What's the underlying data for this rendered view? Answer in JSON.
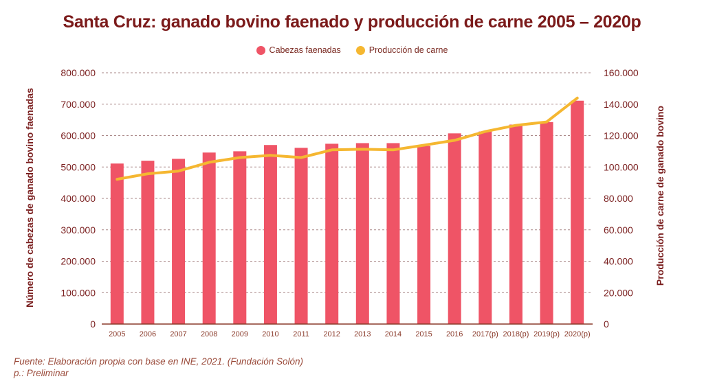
{
  "chart_data": {
    "type": "bar+line",
    "title": "Santa Cruz: ganado bovino faenado y producción de carne 2005 – 2020p",
    "categories": [
      "2005",
      "2006",
      "2007",
      "2008",
      "2009",
      "2010",
      "2011",
      "2012",
      "2013",
      "2014",
      "2015",
      "2016",
      "2017(p)",
      "2018(p)",
      "2019(p)",
      "2020(p)"
    ],
    "series": [
      {
        "name": "Cabezas faenadas",
        "type": "bar",
        "axis": "left",
        "color": "#EF5466",
        "values": [
          511000,
          520000,
          526000,
          546000,
          550000,
          570000,
          561000,
          574000,
          576000,
          576000,
          567000,
          607000,
          613000,
          635000,
          643000,
          711000
        ]
      },
      {
        "name": "Producción de carne",
        "type": "line",
        "axis": "right",
        "color": "#F5B731",
        "values": [
          92200,
          95700,
          97400,
          103000,
          106000,
          107400,
          106000,
          110900,
          111300,
          110900,
          113900,
          117000,
          122600,
          126500,
          128700,
          143900
        ]
      }
    ],
    "ylabel": "Número de cabezas de ganado bovino faenadas",
    "ylabel_right": "Producción de carne de ganado bovino",
    "xlabel": "",
    "ylim": [
      0,
      800000
    ],
    "ylim_right": [
      0,
      160000
    ],
    "yticks": [
      "0",
      "100.000",
      "200.000",
      "300.000",
      "400.000",
      "500.000",
      "600.000",
      "700.000",
      "800.000"
    ],
    "yticks_right": [
      "0",
      "20.000",
      "40.000",
      "60.000",
      "80.000",
      "100.000",
      "120.000",
      "140.000",
      "160.000"
    ],
    "grid": true,
    "legend_position": "top-center"
  },
  "legend": [
    {
      "label": "Cabezas faenadas",
      "color": "#EF5466"
    },
    {
      "label": "Producción de carne",
      "color": "#F5B731"
    }
  ],
  "footnote": {
    "source": "Fuente: Elaboración propia con base en INE, 2021. (Fundación Solón)",
    "note": "p.: Preliminar"
  }
}
